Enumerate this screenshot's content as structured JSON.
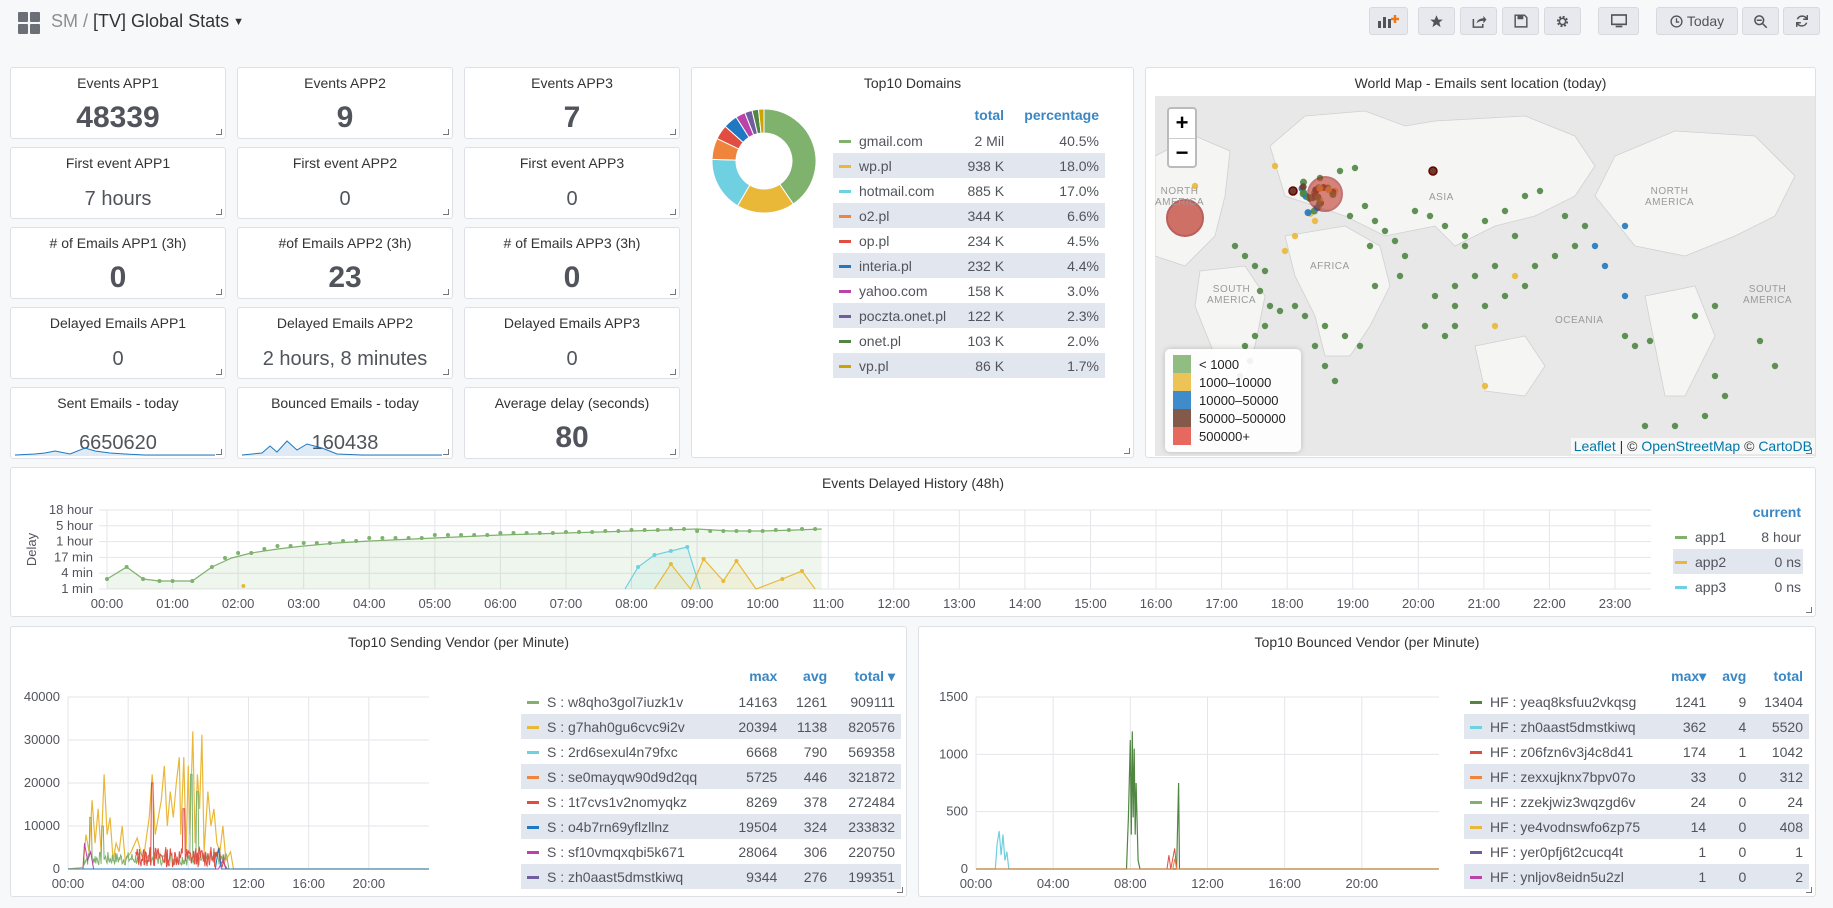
{
  "header": {
    "folder": "SM",
    "separator": "/",
    "title": "[TV] Global Stats",
    "today_label": "Today"
  },
  "stats": [
    {
      "title": "Events APP1",
      "value": "48339"
    },
    {
      "title": "Events APP2",
      "value": "9"
    },
    {
      "title": "Events APP3",
      "value": "7"
    },
    {
      "title": "First event APP1",
      "value": "7 hours"
    },
    {
      "title": "First event APP2",
      "value": "0"
    },
    {
      "title": "First event APP3",
      "value": "0"
    },
    {
      "title": "# of Emails APP1 (3h)",
      "value": "0"
    },
    {
      "title": "#of Emails APP2 (3h)",
      "value": "23"
    },
    {
      "title": "# of Emails APP3 (3h)",
      "value": "0"
    },
    {
      "title": "Delayed Emails APP1",
      "value": "0"
    },
    {
      "title": "Delayed Emails APP2",
      "value": "2 hours, 8 minutes"
    },
    {
      "title": "Delayed Emails APP3",
      "value": "0"
    },
    {
      "title": "Sent Emails - today",
      "value": "6650620"
    },
    {
      "title": "Bounced Emails - today",
      "value": "160438"
    },
    {
      "title": "Average delay (seconds)",
      "value": "80"
    }
  ],
  "domains": {
    "title": "Top10 Domains",
    "col_total": "total",
    "col_percentage": "percentage",
    "rows": [
      {
        "name": "gmail.com",
        "total": "2 Mil",
        "pct": "40.5%",
        "color": "#7eb26d"
      },
      {
        "name": "wp.pl",
        "total": "938 K",
        "pct": "18.0%",
        "color": "#eab839"
      },
      {
        "name": "hotmail.com",
        "total": "885 K",
        "pct": "17.0%",
        "color": "#6ed0e0"
      },
      {
        "name": "o2.pl",
        "total": "344 K",
        "pct": "6.6%",
        "color": "#ef843c"
      },
      {
        "name": "op.pl",
        "total": "234 K",
        "pct": "4.5%",
        "color": "#e24d42"
      },
      {
        "name": "interia.pl",
        "total": "232 K",
        "pct": "4.4%",
        "color": "#1f78c1"
      },
      {
        "name": "yahoo.com",
        "total": "158 K",
        "pct": "3.0%",
        "color": "#ba43a9"
      },
      {
        "name": "poczta.onet.pl",
        "total": "122 K",
        "pct": "2.3%",
        "color": "#705da0"
      },
      {
        "name": "onet.pl",
        "total": "103 K",
        "pct": "2.0%",
        "color": "#508642"
      },
      {
        "name": "vp.pl",
        "total": "86 K",
        "pct": "1.7%",
        "color": "#cca300"
      }
    ]
  },
  "worldmap": {
    "title": "World Map - Emails sent location (today)",
    "zoom_in": "+",
    "zoom_out": "−",
    "legend": [
      {
        "label": "< 1000",
        "color": "#7eb26d"
      },
      {
        "label": "1000–10000",
        "color": "#eab839"
      },
      {
        "label": "10000–50000",
        "color": "#1f78c1"
      },
      {
        "label": "50000–500000",
        "color": "#6d3c2a"
      },
      {
        "label": "500000+",
        "color": "#e24d42"
      }
    ],
    "labels": {
      "north_america_w": "NORTH\nAMERICA",
      "south_america_w": "SOUTH\nAMERICA",
      "africa": "AFRICA",
      "asia": "ASIA",
      "north_america_e": "NORTH\nAMERICA",
      "oceania": "OCEANIA",
      "south_america_e": "SOUTH\nAMERICA"
    },
    "attrib_leaflet": "Leaflet",
    "attrib_sep1": " | © ",
    "attrib_osm": "OpenStreetMap",
    "attrib_sep2": " © ",
    "attrib_carto": "CartoDB"
  },
  "delayed": {
    "title": "Events Delayed History (48h)",
    "ylabel": "Delay",
    "yticks": [
      "18 hour",
      "5 hour",
      "1 hour",
      "17 min",
      "4 min",
      "1 min"
    ],
    "xticks": [
      "00:00",
      "01:00",
      "02:00",
      "03:00",
      "04:00",
      "05:00",
      "06:00",
      "07:00",
      "08:00",
      "09:00",
      "10:00",
      "11:00",
      "12:00",
      "13:00",
      "14:00",
      "15:00",
      "16:00",
      "17:00",
      "18:00",
      "19:00",
      "20:00",
      "21:00",
      "22:00",
      "23:00"
    ],
    "legend_header": "current",
    "legend": [
      {
        "name": "app1",
        "value": "8 hour",
        "color": "#7eb26d"
      },
      {
        "name": "app2",
        "value": "0 ns",
        "color": "#eab839"
      },
      {
        "name": "app3",
        "value": "0 ns",
        "color": "#6ed0e0"
      }
    ]
  },
  "sending": {
    "title": "Top10 Sending Vendor (per Minute)",
    "yticks": [
      "40000",
      "30000",
      "20000",
      "10000",
      "0"
    ],
    "xticks": [
      "00:00",
      "04:00",
      "08:00",
      "12:00",
      "16:00",
      "20:00"
    ],
    "col_max": "max",
    "col_avg": "avg",
    "col_total": "total",
    "sort_caret": "▾",
    "rows": [
      {
        "name": "S : w8qho3gol7iuzk1v",
        "max": "14163",
        "avg": "1261",
        "total": "909111",
        "color": "#7eb26d"
      },
      {
        "name": "S : g7hah0gu6cvc9i2v",
        "max": "20394",
        "avg": "1138",
        "total": "820576",
        "color": "#eab839"
      },
      {
        "name": "S : 2rd6sexul4n79fxc",
        "max": "6668",
        "avg": "790",
        "total": "569358",
        "color": "#6ed0e0"
      },
      {
        "name": "S : se0mayqw90d9d2qq",
        "max": "5725",
        "avg": "446",
        "total": "321872",
        "color": "#ef843c"
      },
      {
        "name": "S : 1t7cvs1v2nomyqkz",
        "max": "8269",
        "avg": "378",
        "total": "272484",
        "color": "#e24d42"
      },
      {
        "name": "S : o4b7rn69yflzllnz",
        "max": "19504",
        "avg": "324",
        "total": "233832",
        "color": "#1f78c1"
      },
      {
        "name": "S : sf10vmqxqbi5k671",
        "max": "28064",
        "avg": "306",
        "total": "220750",
        "color": "#ba43a9"
      },
      {
        "name": "S : zh0aast5dmstkiwq",
        "max": "9344",
        "avg": "276",
        "total": "199351",
        "color": "#705da0"
      }
    ]
  },
  "bounced": {
    "title": "Top10 Bounced Vendor (per Minute)",
    "yticks": [
      "1500",
      "1000",
      "500",
      "0"
    ],
    "xticks": [
      "00:00",
      "04:00",
      "08:00",
      "12:00",
      "16:00",
      "20:00"
    ],
    "col_max": "max",
    "col_avg": "avg",
    "col_total": "total",
    "sort_caret": "▾",
    "rows": [
      {
        "name": "HF : yeaq8ksfuu2vkqsg",
        "max": "1241",
        "avg": "9",
        "total": "13404",
        "color": "#508642"
      },
      {
        "name": "HF : zh0aast5dmstkiwq",
        "max": "362",
        "avg": "4",
        "total": "5520",
        "color": "#6ed0e0"
      },
      {
        "name": "HF : z06fzn6v3j4c8d41",
        "max": "174",
        "avg": "1",
        "total": "1042",
        "color": "#e24d42"
      },
      {
        "name": "HF : zexxujknx7bpv07o",
        "max": "33",
        "avg": "0",
        "total": "312",
        "color": "#ef843c"
      },
      {
        "name": "HF : zzekjwiz3wqzgd6v",
        "max": "24",
        "avg": "0",
        "total": "24",
        "color": "#7eb26d"
      },
      {
        "name": "HF : ye4vodnswfo6zp75",
        "max": "14",
        "avg": "0",
        "total": "408",
        "color": "#eab839"
      },
      {
        "name": "HF : yer0pfj6t2cucq4t",
        "max": "1",
        "avg": "0",
        "total": "1",
        "color": "#705da0"
      },
      {
        "name": "HF : ynljov8eidn5u2zl",
        "max": "1",
        "avg": "0",
        "total": "2",
        "color": "#ba43a9"
      }
    ]
  }
}
